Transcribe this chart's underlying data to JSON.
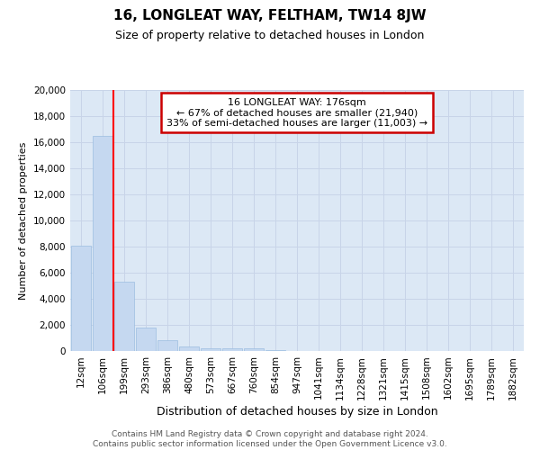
{
  "title": "16, LONGLEAT WAY, FELTHAM, TW14 8JW",
  "subtitle": "Size of property relative to detached houses in London",
  "xlabel": "Distribution of detached houses by size in London",
  "ylabel": "Number of detached properties",
  "categories": [
    "12sqm",
    "106sqm",
    "199sqm",
    "293sqm",
    "386sqm",
    "480sqm",
    "573sqm",
    "667sqm",
    "760sqm",
    "854sqm",
    "947sqm",
    "1041sqm",
    "1134sqm",
    "1228sqm",
    "1321sqm",
    "1415sqm",
    "1508sqm",
    "1602sqm",
    "1695sqm",
    "1789sqm",
    "1882sqm"
  ],
  "values": [
    8100,
    16500,
    5300,
    1800,
    800,
    350,
    200,
    200,
    200,
    50,
    30,
    20,
    15,
    10,
    8,
    5,
    4,
    3,
    2,
    2,
    2
  ],
  "bar_color": "#c5d8f0",
  "bar_edgecolor": "#9bbde0",
  "red_line_x": 1.5,
  "annotation_title": "16 LONGLEAT WAY: 176sqm",
  "annotation_line1": "← 67% of detached houses are smaller (21,940)",
  "annotation_line2": "33% of semi-detached houses are larger (11,003) →",
  "annotation_box_color": "#ffffff",
  "annotation_box_edgecolor": "#cc0000",
  "ylim": [
    0,
    20000
  ],
  "yticks": [
    0,
    2000,
    4000,
    6000,
    8000,
    10000,
    12000,
    14000,
    16000,
    18000,
    20000
  ],
  "grid_color": "#c8d4e8",
  "background_color": "#dce8f5",
  "fig_background": "#ffffff",
  "footer_line1": "Contains HM Land Registry data © Crown copyright and database right 2024.",
  "footer_line2": "Contains public sector information licensed under the Open Government Licence v3.0.",
  "title_fontsize": 11,
  "subtitle_fontsize": 9,
  "ylabel_fontsize": 8,
  "xlabel_fontsize": 9,
  "tick_fontsize": 7.5,
  "annotation_fontsize": 8,
  "footer_fontsize": 6.5
}
